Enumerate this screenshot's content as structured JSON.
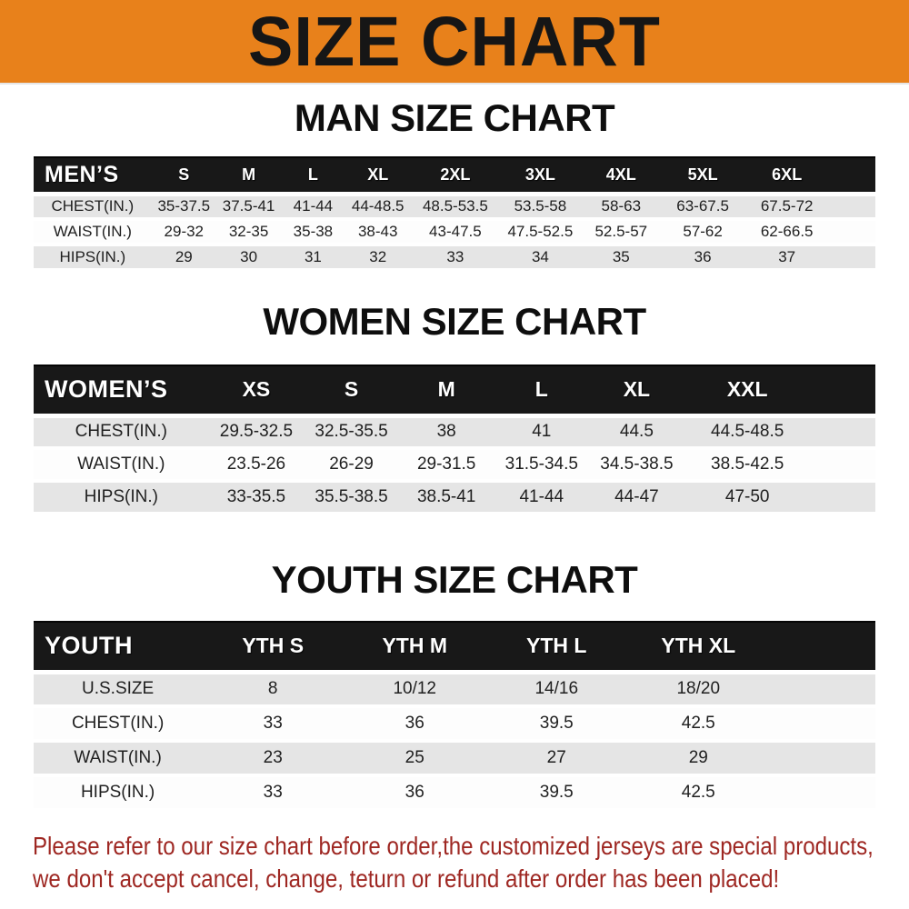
{
  "banner": {
    "title": "SIZE CHART",
    "bg_color": "#E8811B",
    "text_color": "#161616"
  },
  "sections": [
    {
      "id": "men",
      "title": "MAN SIZE CHART",
      "group_label": "MEN’S",
      "size_headers": [
        "S",
        "M",
        "L",
        "XL",
        "2XL",
        "3XL",
        "4XL",
        "5XL",
        "6XL"
      ],
      "rows": [
        {
          "label": "CHEST(IN.)",
          "values": [
            "35-37.5",
            "37.5-41",
            "41-44",
            "44-48.5",
            "48.5-53.5",
            "53.5-58",
            "58-63",
            "63-67.5",
            "67.5-72"
          ]
        },
        {
          "label": "WAIST(IN.)",
          "values": [
            "29-32",
            "32-35",
            "35-38",
            "38-43",
            "43-47.5",
            "47.5-52.5",
            "52.5-57",
            "57-62",
            "62-66.5"
          ]
        },
        {
          "label": "HIPS(IN.)",
          "values": [
            "29",
            "30",
            "31",
            "32",
            "33",
            "34",
            "35",
            "36",
            "37"
          ]
        }
      ]
    },
    {
      "id": "women",
      "title": "WOMEN SIZE CHART",
      "group_label": "WOMEN’S",
      "size_headers": [
        "XS",
        "S",
        "M",
        "L",
        "XL",
        "XXL"
      ],
      "rows": [
        {
          "label": "CHEST(IN.)",
          "values": [
            "29.5-32.5",
            "32.5-35.5",
            "38",
            "41",
            "44.5",
            "44.5-48.5"
          ]
        },
        {
          "label": "WAIST(IN.)",
          "values": [
            "23.5-26",
            "26-29",
            "29-31.5",
            "31.5-34.5",
            "34.5-38.5",
            "38.5-42.5"
          ]
        },
        {
          "label": "HIPS(IN.)",
          "values": [
            "33-35.5",
            "35.5-38.5",
            "38.5-41",
            "41-44",
            "44-47",
            "47-50"
          ]
        }
      ]
    },
    {
      "id": "youth",
      "title": "YOUTH SIZE CHART",
      "group_label": "YOUTH",
      "size_headers": [
        "YTH S",
        "YTH M",
        "YTH L",
        "YTH XL"
      ],
      "rows": [
        {
          "label": "U.S.SIZE",
          "values": [
            "8",
            "10/12",
            "14/16",
            "18/20"
          ]
        },
        {
          "label": "CHEST(IN.)",
          "values": [
            "33",
            "36",
            "39.5",
            "42.5"
          ]
        },
        {
          "label": "WAIST(IN.)",
          "values": [
            "23",
            "25",
            "27",
            "29"
          ]
        },
        {
          "label": "HIPS(IN.)",
          "values": [
            "33",
            "36",
            "39.5",
            "42.5"
          ]
        }
      ]
    }
  ],
  "disclaimer": {
    "lines": [
      "Please refer to our size chart before order,the customized jerseys are special products,",
      "we don't accept cancel, change, teturn or refund after order has been placed!"
    ],
    "color": "#9E2722"
  },
  "colors": {
    "stripe_row": "#E5E5E5",
    "header_bar": "#181818",
    "table_text": "#1F1F1F"
  }
}
